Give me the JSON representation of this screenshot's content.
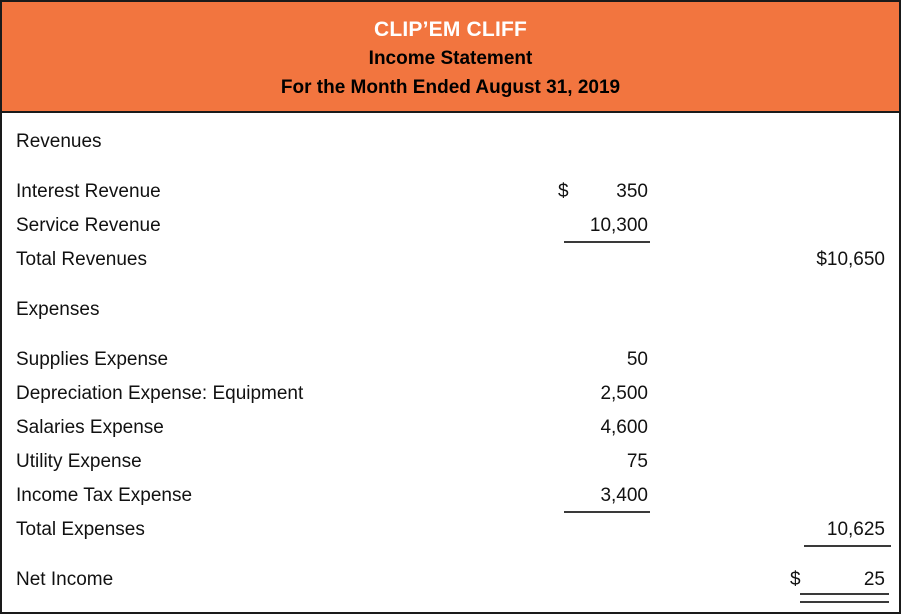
{
  "header": {
    "company": "CLIP’EM CLIFF",
    "title": "Income Statement",
    "period": "For the Month Ended August 31, 2019"
  },
  "rows": {
    "revenues_header": {
      "label": "Revenues"
    },
    "interest_revenue": {
      "label": "Interest Revenue",
      "currency": "$",
      "amount": "350"
    },
    "service_revenue": {
      "label": "Service Revenue",
      "amount": "10,300"
    },
    "total_revenues": {
      "label": "Total Revenues",
      "amount": "$10,650"
    },
    "expenses_header": {
      "label": "Expenses"
    },
    "supplies_expense": {
      "label": "Supplies Expense",
      "amount": "50"
    },
    "depreciation_expense": {
      "label": "Depreciation Expense: Equipment",
      "amount": "2,500"
    },
    "salaries_expense": {
      "label": "Salaries Expense",
      "amount": "4,600"
    },
    "utility_expense": {
      "label": "Utility Expense",
      "amount": "75"
    },
    "income_tax_expense": {
      "label": "Income Tax Expense",
      "amount": "3,400"
    },
    "total_expenses": {
      "label": "Total Expenses",
      "amount": "10,625"
    },
    "net_income": {
      "label": "Net Income",
      "currency": "$",
      "amount": "25"
    }
  },
  "colors": {
    "header_bg": "#F2753F",
    "header_company_text": "#FFFFFF",
    "header_text": "#000000",
    "body_text": "#111111",
    "rule": "#3A3A3A",
    "frame": "#1A1A1A",
    "page_bg": "#FFFFFF"
  }
}
